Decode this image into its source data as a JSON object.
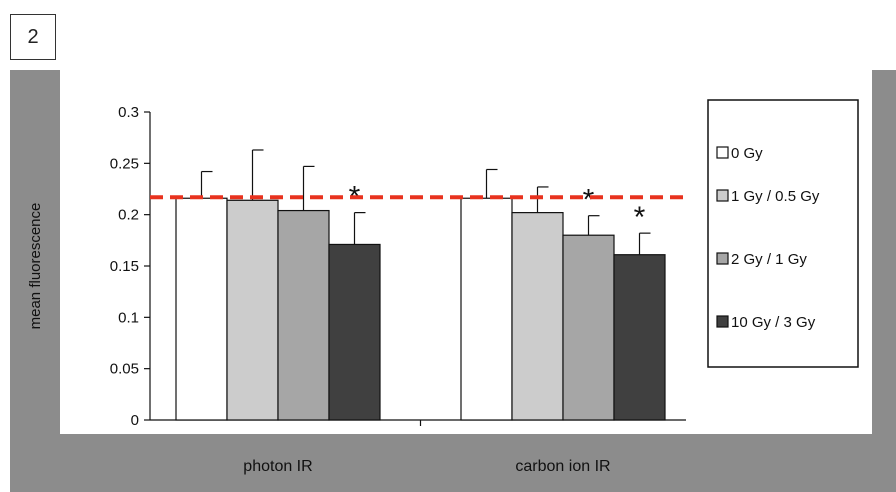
{
  "panel_label": "2",
  "chart_data": {
    "type": "bar",
    "ylabel": "mean fluorescence",
    "xlabel": "",
    "ylim": [
      0,
      0.3
    ],
    "yticks": [
      0,
      0.05,
      0.1,
      0.15,
      0.2,
      0.25,
      0.3
    ],
    "ytick_labels": [
      "0",
      "0.05",
      "0.1",
      "0.15",
      "0.2",
      "0.25",
      "0.3"
    ],
    "categories": [
      "photon IR",
      "carbon ion IR"
    ],
    "series": [
      {
        "name": "0 Gy",
        "values": [
          0.216,
          0.216
        ],
        "errors": [
          0.026,
          0.028
        ],
        "color": "#ffffff"
      },
      {
        "name": "1 Gy / 0.5 Gy",
        "values": [
          0.214,
          0.202
        ],
        "errors": [
          0.049,
          0.025
        ],
        "color": "#cccccc"
      },
      {
        "name": "2 Gy / 1 Gy",
        "values": [
          0.204,
          0.18
        ],
        "errors": [
          0.043,
          0.019
        ],
        "color": "#a6a6a6"
      },
      {
        "name": "10 Gy / 3 Gy",
        "values": [
          0.171,
          0.161
        ],
        "errors": [
          0.031,
          0.021
        ],
        "color": "#404040"
      }
    ],
    "significance_marker": "*",
    "significant": [
      [
        false,
        false,
        false,
        true
      ],
      [
        false,
        false,
        true,
        true
      ]
    ],
    "reference_line": {
      "value": 0.217,
      "color": "#e8321e",
      "style": "dashed"
    },
    "legend_position": "right",
    "grid": false
  }
}
